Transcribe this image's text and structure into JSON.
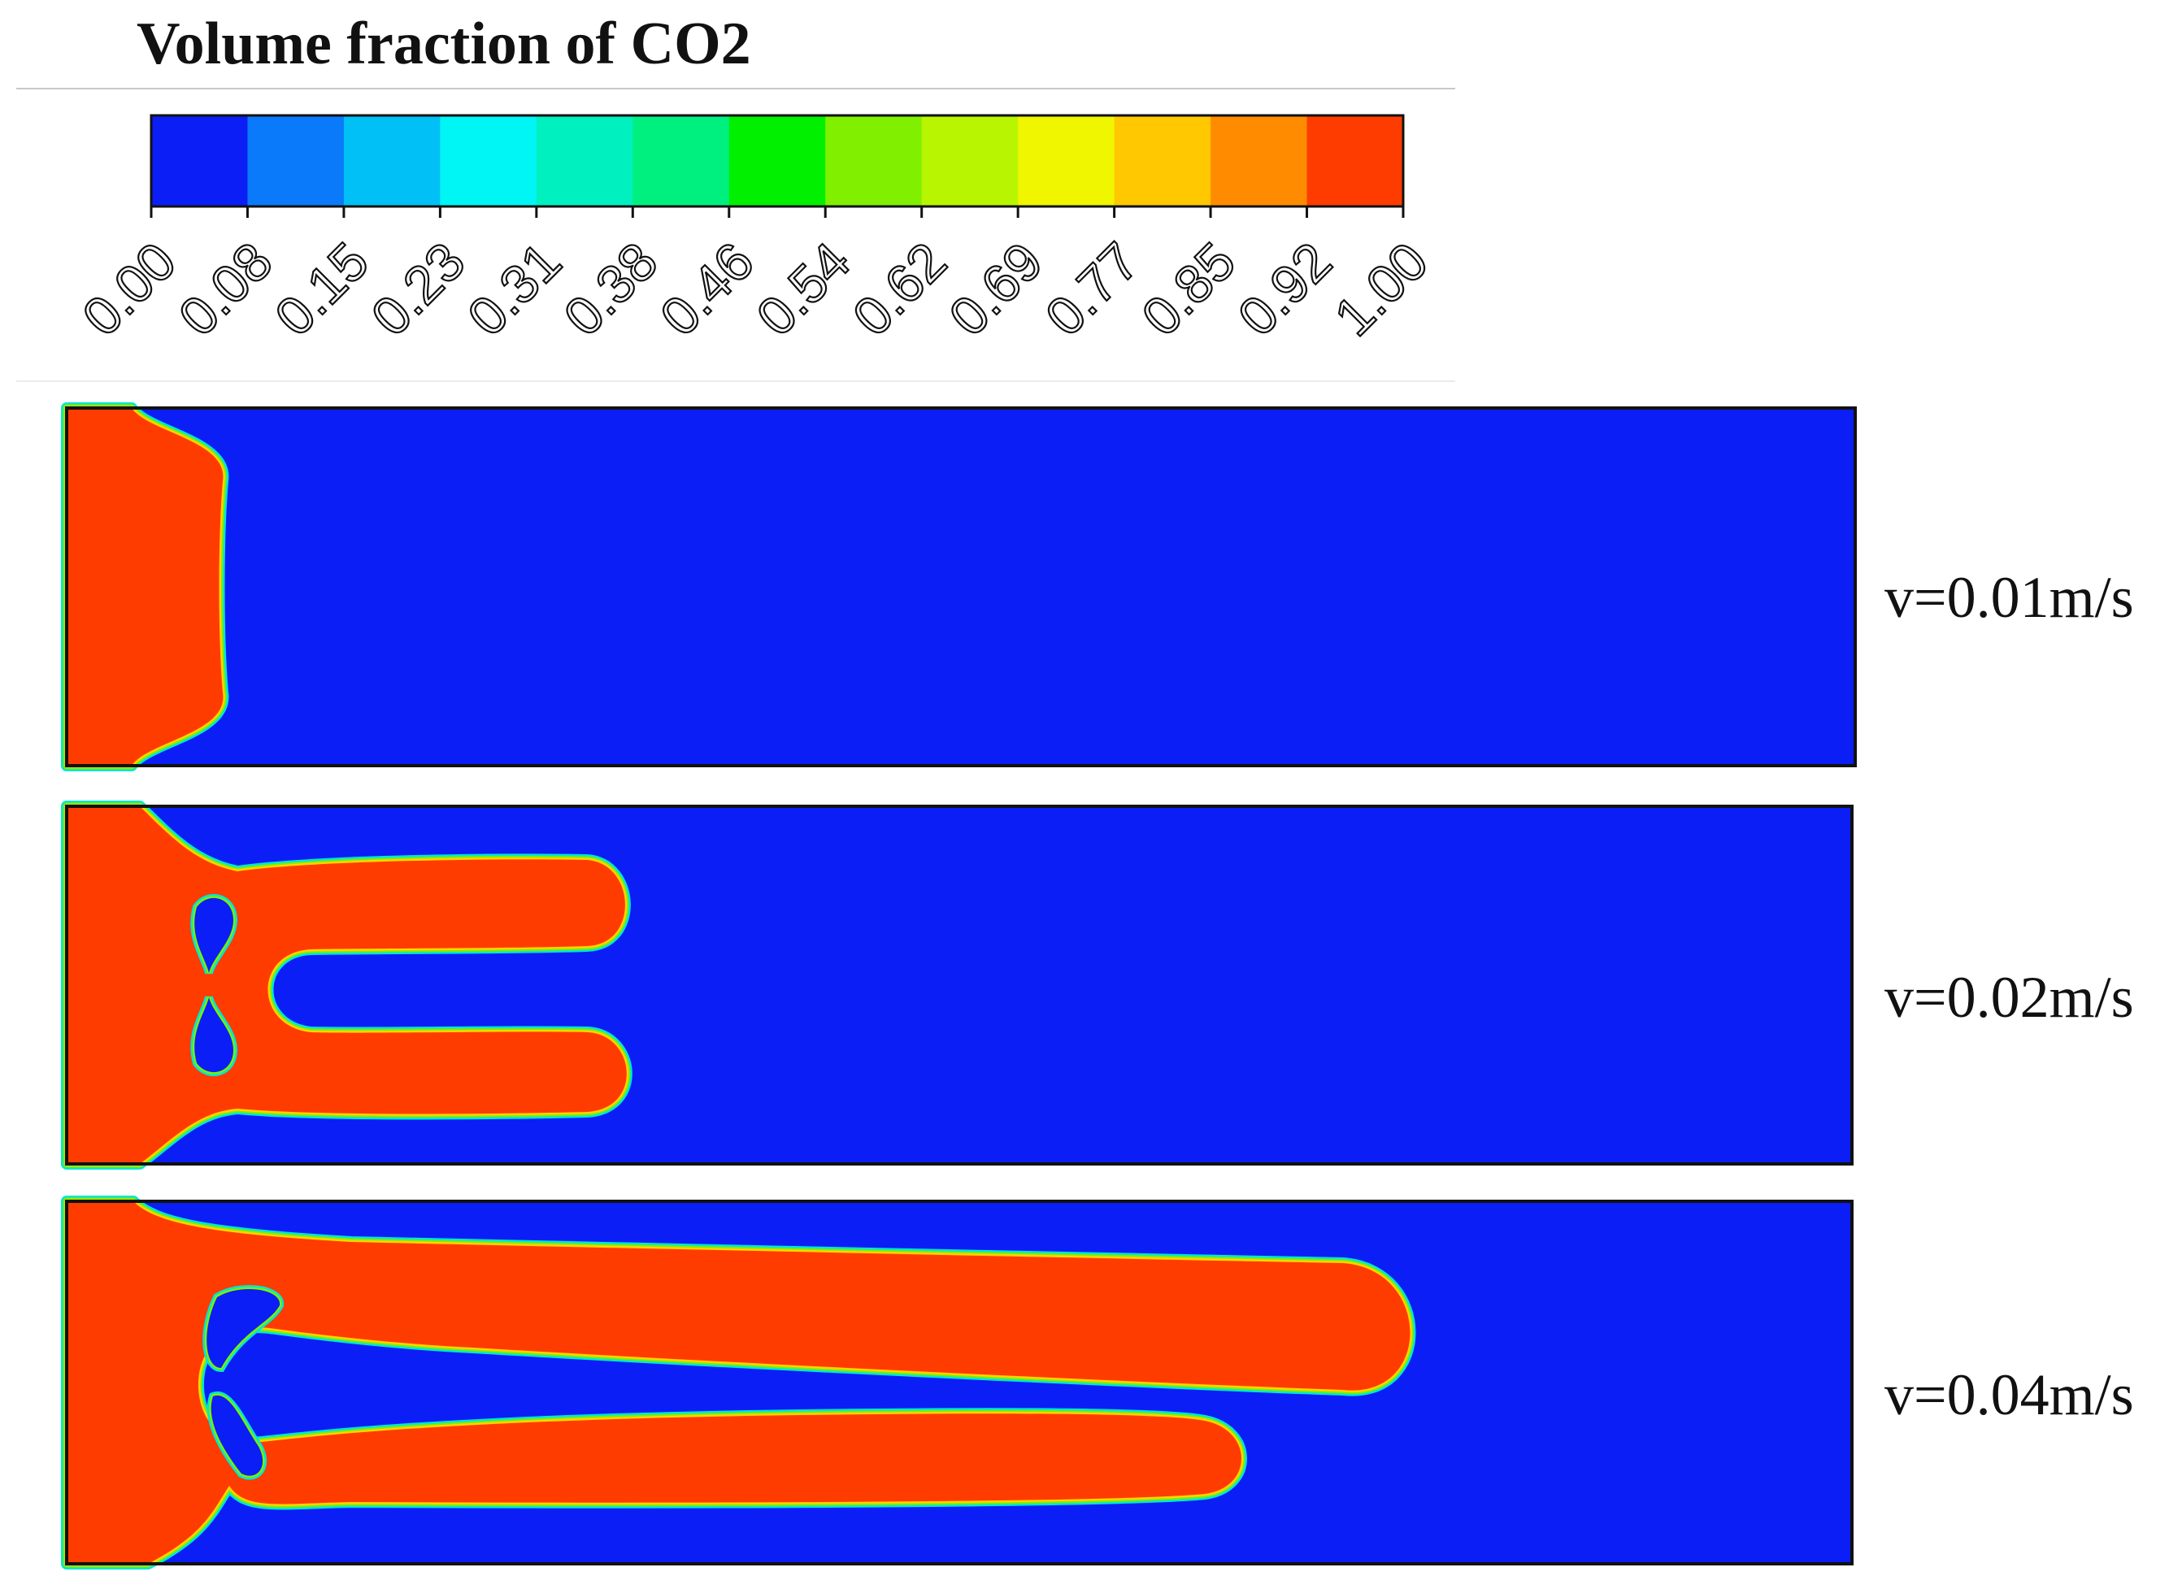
{
  "legend": {
    "title": "Volume fraction of CO2",
    "ticks": [
      "0.00",
      "0.08",
      "0.15",
      "0.23",
      "0.31",
      "0.38",
      "0.46",
      "0.54",
      "0.62",
      "0.69",
      "0.77",
      "0.85",
      "0.92",
      "1.00"
    ],
    "colors": [
      "#0a1ef5",
      "#0a7afa",
      "#00c0f5",
      "#00f5f5",
      "#00f0c0",
      "#00f080",
      "#00f000",
      "#80f000",
      "#b8f500",
      "#f0f500",
      "#ffc800",
      "#ff8c00",
      "#ff3c00"
    ]
  },
  "phase_colors": {
    "liquid": "#0a1ef5",
    "co2": "#ff3c00"
  },
  "panels": [
    {
      "label": "v=0.01m/s"
    },
    {
      "label": "v=0.02m/s"
    },
    {
      "label": "v=0.04m/s"
    }
  ]
}
